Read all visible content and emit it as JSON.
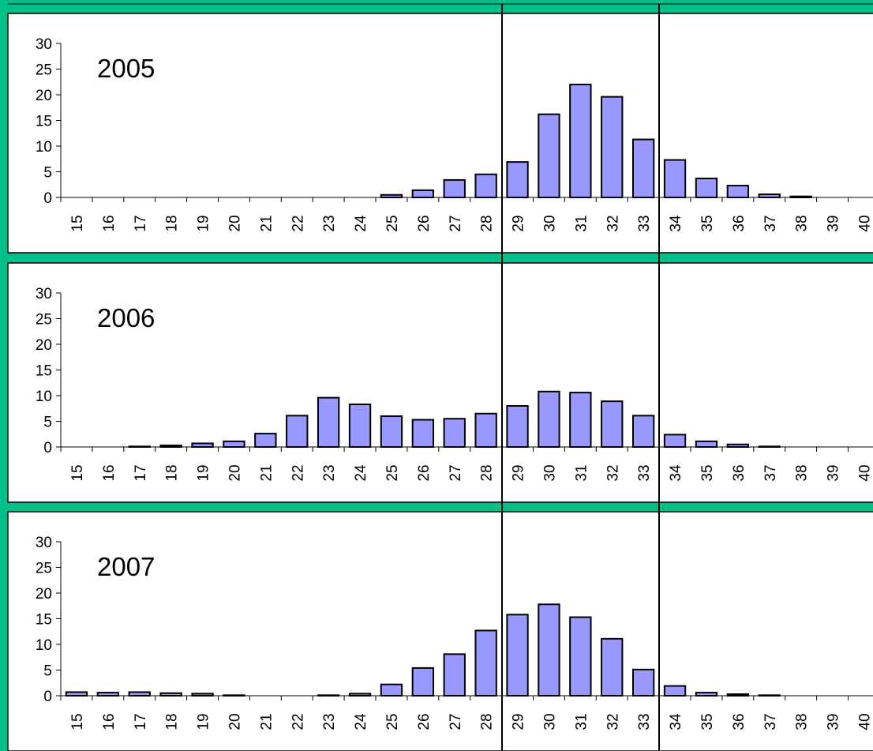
{
  "colors": {
    "background": "#00c08a",
    "panel": "#ffffff",
    "bar": "#9999ff",
    "bar_stroke": "#000000"
  },
  "chart_data": [
    {
      "type": "bar",
      "title": "2005",
      "categories": [
        "15",
        "16",
        "17",
        "18",
        "19",
        "20",
        "21",
        "22",
        "23",
        "24",
        "25",
        "26",
        "27",
        "28",
        "29",
        "30",
        "31",
        "32",
        "33",
        "34",
        "35",
        "36",
        "37",
        "38",
        "39",
        "40"
      ],
      "values": [
        0,
        0,
        0,
        0,
        0,
        0,
        0,
        0,
        0,
        0,
        0.5,
        1.4,
        3.4,
        4.5,
        6.9,
        16.2,
        22,
        19.6,
        11.3,
        7.3,
        3.7,
        2.3,
        0.6,
        0.2,
        0,
        0
      ],
      "yticks": [
        0,
        5,
        10,
        15,
        20,
        25,
        30
      ],
      "ylim": [
        0,
        30
      ],
      "xlabel": "",
      "ylabel": ""
    },
    {
      "type": "bar",
      "title": "2006",
      "categories": [
        "15",
        "16",
        "17",
        "18",
        "19",
        "20",
        "21",
        "22",
        "23",
        "24",
        "25",
        "26",
        "27",
        "28",
        "29",
        "30",
        "31",
        "32",
        "33",
        "34",
        "35",
        "36",
        "37",
        "38",
        "39",
        "40"
      ],
      "values": [
        0,
        0,
        0.1,
        0.3,
        0.7,
        1.1,
        2.6,
        6.1,
        9.6,
        8.3,
        6,
        5.3,
        5.5,
        6.5,
        8,
        10.8,
        10.6,
        8.9,
        6.1,
        2.4,
        1.1,
        0.5,
        0.1,
        0,
        0,
        0
      ],
      "yticks": [
        0,
        5,
        10,
        15,
        20,
        25,
        30
      ],
      "ylim": [
        0,
        30
      ],
      "xlabel": "",
      "ylabel": ""
    },
    {
      "type": "bar",
      "title": "2007",
      "categories": [
        "15",
        "16",
        "17",
        "18",
        "19",
        "20",
        "21",
        "22",
        "23",
        "24",
        "25",
        "26",
        "27",
        "28",
        "29",
        "30",
        "31",
        "32",
        "33",
        "34",
        "35",
        "36",
        "37",
        "38",
        "39",
        "40"
      ],
      "values": [
        0.7,
        0.6,
        0.7,
        0.5,
        0.4,
        0.1,
        0,
        0,
        0.1,
        0.4,
        2.2,
        5.4,
        8.1,
        12.7,
        15.8,
        17.8,
        15.3,
        11.1,
        5.1,
        1.9,
        0.6,
        0.3,
        0.1,
        0,
        0,
        0
      ],
      "yticks": [
        0,
        5,
        10,
        15,
        20,
        25,
        30
      ],
      "ylim": [
        0,
        30
      ],
      "xlabel": "",
      "ylabel": ""
    }
  ]
}
